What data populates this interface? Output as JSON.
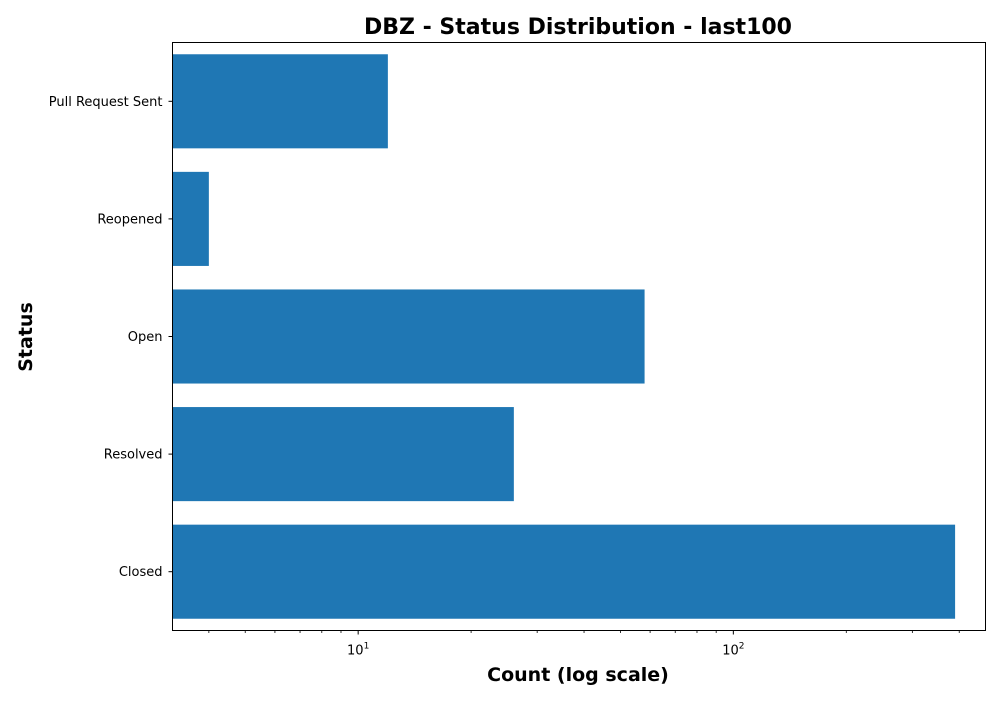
{
  "chart_data": {
    "type": "bar",
    "orientation": "horizontal",
    "title": "DBZ - Status Distribution - last100",
    "xlabel": "Count (log scale)",
    "ylabel": "Status",
    "x_scale": "log",
    "xlim": [
      3.2,
      470
    ],
    "x_ticks": [
      {
        "value": 10,
        "base": "10",
        "exp": "1"
      },
      {
        "value": 100,
        "base": "10",
        "exp": "2"
      }
    ],
    "categories": [
      "Closed",
      "Resolved",
      "Open",
      "Reopened",
      "Pull Request Sent"
    ],
    "values": [
      390,
      26,
      58,
      4,
      12
    ],
    "grid": false,
    "bar_color": "#1f77b4"
  }
}
